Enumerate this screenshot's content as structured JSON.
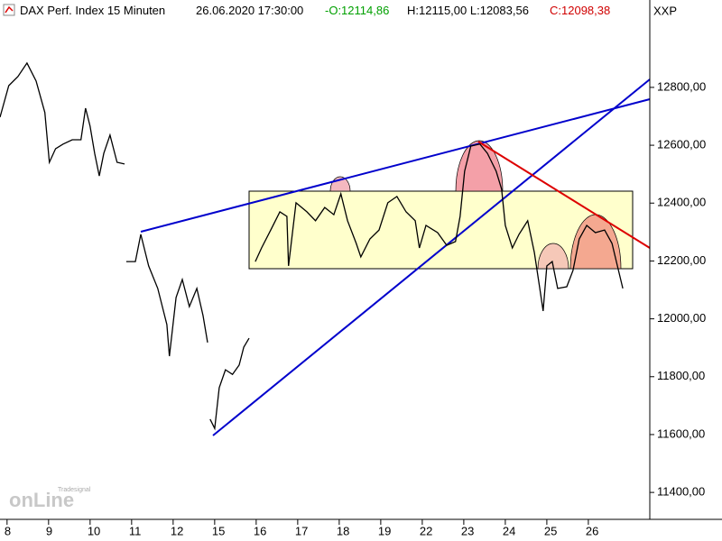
{
  "chart_data": {
    "type": "line",
    "header": {
      "instrument": "DAX Perf. Index 15 Minuten",
      "timestamp": "26.06.2020 17:30:00",
      "open": "-O:12114,86",
      "high_low": "H:12115,00 L:12083,56",
      "close": "C:12098,38",
      "symbol": "XXP"
    },
    "watermark": {
      "brand": "Tradesignal",
      "logo": "onLine"
    },
    "x": [
      -0.17,
      0.04,
      0.26,
      0.48,
      0.7,
      0.91,
      1.02,
      1.17,
      1.35,
      1.57,
      1.78,
      1.89,
      2.0,
      2.11,
      2.22,
      2.33,
      2.48,
      2.65,
      2.83,
      2.85,
      2.87,
      3.09,
      3.22,
      3.41,
      3.63,
      3.85,
      3.91,
      4.07,
      4.22,
      4.39,
      4.57,
      4.72,
      4.83,
      4.86,
      4.89,
      5.0,
      5.11,
      5.26,
      5.43,
      5.59,
      5.7,
      5.83,
      5.9,
      5.98,
      6.13,
      6.35,
      6.57,
      6.74,
      6.78,
      6.96,
      7.22,
      7.43,
      7.65,
      7.87,
      8.04,
      8.2,
      8.41,
      8.52,
      8.74,
      8.96,
      9.17,
      9.39,
      9.61,
      9.83,
      9.93,
      10.09,
      10.37,
      10.59,
      10.8,
      10.91,
      11.02,
      11.17,
      11.39,
      11.57,
      11.78,
      11.91,
      12.0,
      12.17,
      12.33,
      12.54,
      12.7,
      12.83,
      12.91,
      13.0,
      13.13,
      13.26,
      13.48,
      13.63,
      13.78,
      13.96,
      14.17,
      14.39,
      14.57,
      14.7,
      14.83
    ],
    "series": [
      {
        "color": "#000000",
        "values": [
          12697,
          12806,
          12837,
          12884,
          12822,
          12713,
          12541,
          12588,
          12604,
          12619,
          12619,
          12728,
          12666,
          12572,
          12494,
          12572,
          12635,
          12541,
          12535,
          null,
          12198,
          12198,
          12292,
          12183,
          12105,
          11980,
          11871,
          12074,
          12136,
          12042,
          12105,
          12011,
          11918,
          null,
          11653,
          11621,
          11762,
          11824,
          11808,
          11840,
          11902,
          11933,
          null,
          12198,
          12245,
          12307,
          12370,
          12354,
          12183,
          12401,
          12370,
          12339,
          12385,
          12360,
          12432,
          12339,
          12261,
          12214,
          12276,
          12307,
          12401,
          12423,
          12370,
          12339,
          12245,
          12323,
          12298,
          12254,
          12267,
          12354,
          12510,
          12597,
          12604,
          12572,
          12510,
          12448,
          12323,
          12245,
          12292,
          12339,
          12229,
          12105,
          12027,
          12183,
          12198,
          12105,
          12111,
          12167,
          12276,
          12323,
          12298,
          12307,
          12261,
          12183,
          12105
        ]
      }
    ],
    "xlim": [
      -0.17,
      15.48
    ],
    "xticks": [
      {
        "value": 0,
        "label": "8"
      },
      {
        "value": 1,
        "label": "9"
      },
      {
        "value": 2,
        "label": "10"
      },
      {
        "value": 3,
        "label": "11"
      },
      {
        "value": 4,
        "label": "12"
      },
      {
        "value": 5,
        "label": "15"
      },
      {
        "value": 6,
        "label": "16"
      },
      {
        "value": 7,
        "label": "17"
      },
      {
        "value": 8,
        "label": "18"
      },
      {
        "value": 9,
        "label": "19"
      },
      {
        "value": 10,
        "label": "22"
      },
      {
        "value": 11,
        "label": "23"
      },
      {
        "value": 12,
        "label": "24"
      },
      {
        "value": 13,
        "label": "25"
      },
      {
        "value": 14,
        "label": "26"
      }
    ],
    "ylim": [
      11310,
      13102
    ],
    "yticks": [
      {
        "value": 11400,
        "label": "11400,00"
      },
      {
        "value": 11600,
        "label": "11600,00"
      },
      {
        "value": 11800,
        "label": "11800,00"
      },
      {
        "value": 12000,
        "label": "12000,00"
      },
      {
        "value": 12200,
        "label": "12200,00"
      },
      {
        "value": 12400,
        "label": "12400,00"
      },
      {
        "value": 12600,
        "label": "12600,00"
      },
      {
        "value": 12800,
        "label": "12800,00"
      }
    ]
  }
}
